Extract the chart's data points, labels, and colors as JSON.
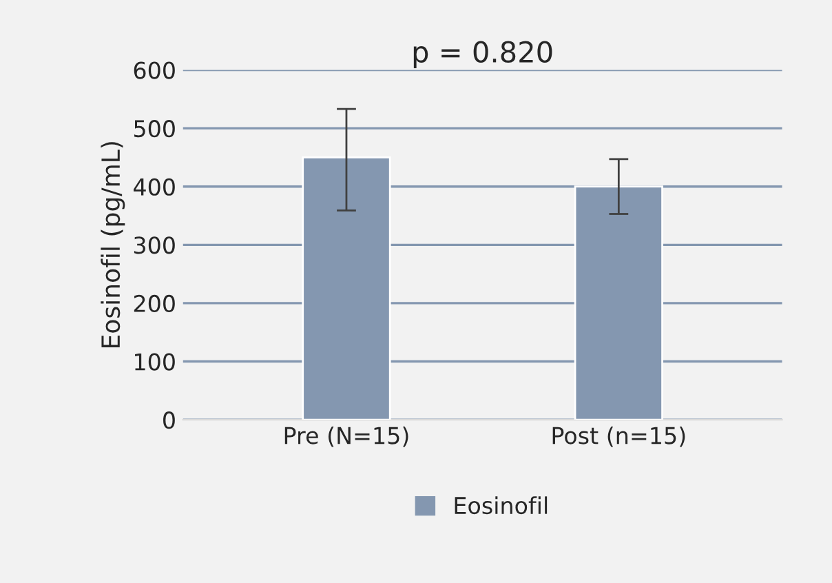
{
  "chart_data": {
    "type": "bar",
    "title": "p = 0.820",
    "ylabel": "Eosinofil (pg/mL)",
    "categories": [
      "Pre (N=15)",
      "Post (n=15)"
    ],
    "series": [
      {
        "name": "Eosinofil",
        "color": "#8497b0",
        "values": [
          450,
          400
        ],
        "errors": [
          [
            359,
            533
          ],
          [
            353,
            447
          ]
        ]
      }
    ],
    "ylim": [
      0,
      600
    ],
    "yticks": [
      0,
      100,
      200,
      300,
      400,
      500,
      600
    ],
    "grid": "y",
    "legend": "bottom"
  }
}
